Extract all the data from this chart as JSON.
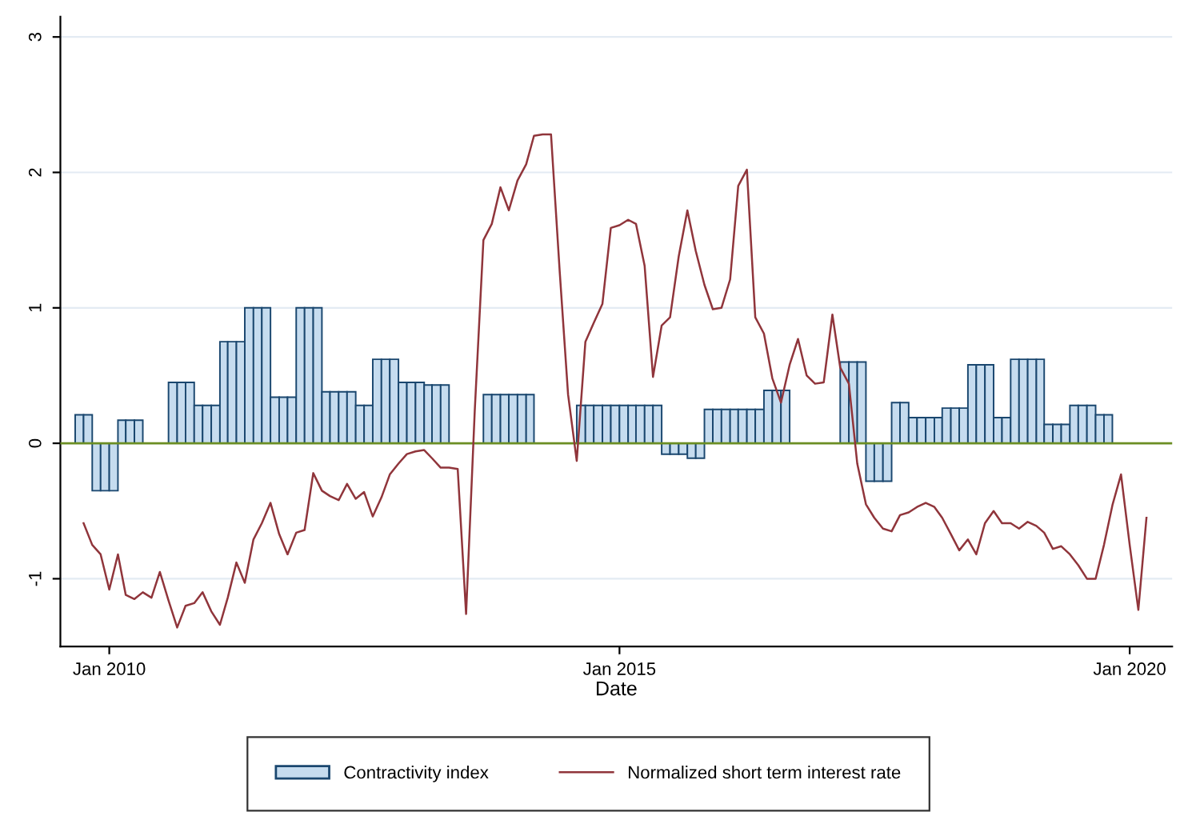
{
  "chart_data": {
    "type": "bar",
    "xlabel": "Date",
    "xlim": [
      "2009-07-10",
      "2020-06-01"
    ],
    "ylim": [
      -1.5,
      3.15
    ],
    "xticks": [
      {
        "value": "2010-01",
        "label": "Jan 2010"
      },
      {
        "value": "2015-01",
        "label": "Jan 2015"
      },
      {
        "value": "2020-01",
        "label": "Jan 2020"
      }
    ],
    "yticks": [
      -1,
      0,
      1,
      2,
      3
    ],
    "grid": "y",
    "legend": "bottom",
    "ref_lines": [
      {
        "axis": "y",
        "value": 0,
        "color": "#6b8e23"
      }
    ],
    "series": [
      {
        "name": "Contractivity index",
        "color": "#c6dcef",
        "x": [
          "2009-09",
          "2009-10",
          "2009-11",
          "2009-12",
          "2010-01",
          "2010-02",
          "2010-03",
          "2010-04",
          "2010-05",
          "2010-06",
          "2010-07",
          "2010-08",
          "2010-09",
          "2010-10",
          "2010-11",
          "2010-12",
          "2011-01",
          "2011-02",
          "2011-03",
          "2011-04",
          "2011-05",
          "2011-06",
          "2011-07",
          "2011-08",
          "2011-09",
          "2011-10",
          "2011-11",
          "2011-12",
          "2012-01",
          "2012-02",
          "2012-03",
          "2012-04",
          "2012-05",
          "2012-06",
          "2012-07",
          "2012-08",
          "2012-09",
          "2012-10",
          "2012-11",
          "2012-12",
          "2013-01",
          "2013-02",
          "2013-03",
          "2013-04",
          "2013-05",
          "2013-06",
          "2013-07",
          "2013-08",
          "2013-09",
          "2013-10",
          "2013-11",
          "2013-12",
          "2014-01",
          "2014-02",
          "2014-03",
          "2014-04",
          "2014-05",
          "2014-06",
          "2014-07",
          "2014-08",
          "2014-09",
          "2014-10",
          "2014-11",
          "2014-12",
          "2015-01",
          "2015-02",
          "2015-03",
          "2015-04",
          "2015-05",
          "2015-06",
          "2015-07",
          "2015-08",
          "2015-09",
          "2015-10",
          "2015-11",
          "2015-12",
          "2016-01",
          "2016-02",
          "2016-03",
          "2016-04",
          "2016-05",
          "2016-06",
          "2016-07",
          "2016-08",
          "2016-09",
          "2016-10",
          "2016-11",
          "2016-12",
          "2017-01",
          "2017-02",
          "2017-03",
          "2017-04",
          "2017-05",
          "2017-06",
          "2017-07",
          "2017-08",
          "2017-09",
          "2017-10",
          "2017-11",
          "2017-12",
          "2018-01",
          "2018-02",
          "2018-03",
          "2018-04",
          "2018-05",
          "2018-06",
          "2018-07",
          "2018-08",
          "2018-09",
          "2018-10",
          "2018-11",
          "2018-12",
          "2019-01",
          "2019-02",
          "2019-03",
          "2019-04",
          "2019-05",
          "2019-06",
          "2019-07",
          "2019-08",
          "2019-09",
          "2019-10"
        ],
        "values": [
          0.21,
          0.21,
          -0.35,
          -0.35,
          -0.35,
          0.17,
          0.17,
          0.17,
          null,
          null,
          null,
          0.45,
          0.45,
          0.45,
          0.28,
          0.28,
          0.28,
          0.75,
          0.75,
          0.75,
          1.0,
          1.0,
          1.0,
          0.34,
          0.34,
          0.34,
          1.0,
          1.0,
          1.0,
          0.38,
          0.38,
          0.38,
          0.38,
          0.28,
          0.28,
          0.62,
          0.62,
          0.62,
          0.45,
          0.45,
          0.45,
          0.43,
          0.43,
          0.43,
          null,
          null,
          null,
          null,
          0.36,
          0.36,
          0.36,
          0.36,
          0.36,
          0.36,
          null,
          null,
          null,
          null,
          null,
          0.28,
          0.28,
          0.28,
          0.28,
          0.28,
          0.28,
          0.28,
          0.28,
          0.28,
          0.28,
          -0.08,
          -0.08,
          -0.08,
          -0.11,
          -0.11,
          0.25,
          0.25,
          0.25,
          0.25,
          0.25,
          0.25,
          0.25,
          0.39,
          0.39,
          0.39,
          null,
          null,
          null,
          null,
          null,
          null,
          0.6,
          0.6,
          0.6,
          -0.28,
          -0.28,
          -0.28,
          0.3,
          0.3,
          0.19,
          0.19,
          0.19,
          0.19,
          0.26,
          0.26,
          0.26,
          0.58,
          0.58,
          0.58,
          0.19,
          0.19,
          0.62,
          0.62,
          0.62,
          0.62,
          0.14,
          0.14,
          0.14,
          0.28,
          0.28,
          0.28,
          0.21,
          0.21
        ]
      },
      {
        "name": "Normalized short term interest rate",
        "type": "line",
        "color": "#90353b",
        "x": [
          "2009-10",
          "2009-11",
          "2009-12",
          "2010-01",
          "2010-02",
          "2010-03",
          "2010-04",
          "2010-05",
          "2010-06",
          "2010-07",
          "2010-08",
          "2010-09",
          "2010-10",
          "2010-11",
          "2010-12",
          "2011-01",
          "2011-02",
          "2011-03",
          "2011-04",
          "2011-05",
          "2011-06",
          "2011-07",
          "2011-08",
          "2011-09",
          "2011-10",
          "2011-11",
          "2011-12",
          "2012-01",
          "2012-02",
          "2012-03",
          "2012-04",
          "2012-05",
          "2012-06",
          "2012-07",
          "2012-08",
          "2012-09",
          "2012-10",
          "2012-11",
          "2012-12",
          "2013-01",
          "2013-02",
          "2013-03",
          "2013-04",
          "2013-05",
          "2013-06",
          "2013-07",
          "2013-08",
          "2013-09",
          "2013-10",
          "2013-11",
          "2013-12",
          "2014-01",
          "2014-02",
          "2014-03",
          "2014-04",
          "2014-05",
          "2014-06",
          "2014-07",
          "2014-08",
          "2014-09",
          "2014-10",
          "2014-11",
          "2014-12",
          "2015-01",
          "2015-02",
          "2015-03",
          "2015-04",
          "2015-05",
          "2015-06",
          "2015-07",
          "2015-08",
          "2015-09",
          "2015-10",
          "2015-11",
          "2015-12",
          "2016-01",
          "2016-02",
          "2016-03",
          "2016-04",
          "2016-05",
          "2016-06",
          "2016-07",
          "2016-08",
          "2016-09",
          "2016-10",
          "2016-11",
          "2016-12",
          "2017-01",
          "2017-02",
          "2017-03",
          "2017-04",
          "2017-05",
          "2017-06",
          "2017-07",
          "2017-08",
          "2017-09",
          "2017-10",
          "2017-11",
          "2017-12",
          "2018-01",
          "2018-02",
          "2018-03",
          "2018-04",
          "2018-05",
          "2018-06",
          "2018-07",
          "2018-08",
          "2018-09",
          "2018-10",
          "2018-11",
          "2018-12",
          "2019-01",
          "2019-02",
          "2019-03",
          "2019-04",
          "2019-05",
          "2019-06",
          "2019-07",
          "2019-08",
          "2019-09",
          "2019-10",
          "2019-11",
          "2019-12",
          "2020-01",
          "2020-02",
          "2020-03"
        ],
        "values": [
          -0.59,
          -0.75,
          -0.82,
          -1.08,
          -0.82,
          -1.12,
          -1.15,
          -1.1,
          -1.14,
          -0.95,
          -1.16,
          -1.36,
          -1.2,
          -1.18,
          -1.1,
          -1.24,
          -1.34,
          -1.14,
          -0.88,
          -1.03,
          -0.71,
          -0.59,
          -0.44,
          -0.67,
          -0.82,
          -0.66,
          -0.64,
          -0.22,
          -0.35,
          -0.39,
          -0.42,
          -0.3,
          -0.41,
          -0.36,
          -0.54,
          -0.4,
          -0.23,
          -0.15,
          -0.08,
          -0.06,
          -0.05,
          -0.11,
          -0.18,
          -0.18,
          -0.19,
          -1.26,
          0.24,
          1.5,
          1.62,
          1.89,
          1.72,
          1.94,
          2.06,
          2.27,
          2.28,
          2.28,
          1.27,
          0.36,
          -0.13,
          0.75,
          0.89,
          1.03,
          1.59,
          1.61,
          1.65,
          1.62,
          1.31,
          0.49,
          0.87,
          0.93,
          1.38,
          1.72,
          1.42,
          1.17,
          0.99,
          1.0,
          1.21,
          1.9,
          2.02,
          0.93,
          0.81,
          0.48,
          0.3,
          0.58,
          0.77,
          0.5,
          0.44,
          0.45,
          0.95,
          0.56,
          0.44,
          -0.15,
          -0.45,
          -0.55,
          -0.63,
          -0.65,
          -0.53,
          -0.51,
          -0.47,
          -0.44,
          -0.47,
          -0.55,
          -0.67,
          -0.79,
          -0.71,
          -0.82,
          -0.59,
          -0.5,
          -0.59,
          -0.59,
          -0.63,
          -0.58,
          -0.61,
          -0.66,
          -0.78,
          -0.76,
          -0.82,
          -0.9,
          -1.0,
          -1.0,
          -0.75,
          -0.45,
          -0.23,
          -0.75,
          -1.23,
          -0.55
        ]
      }
    ]
  }
}
